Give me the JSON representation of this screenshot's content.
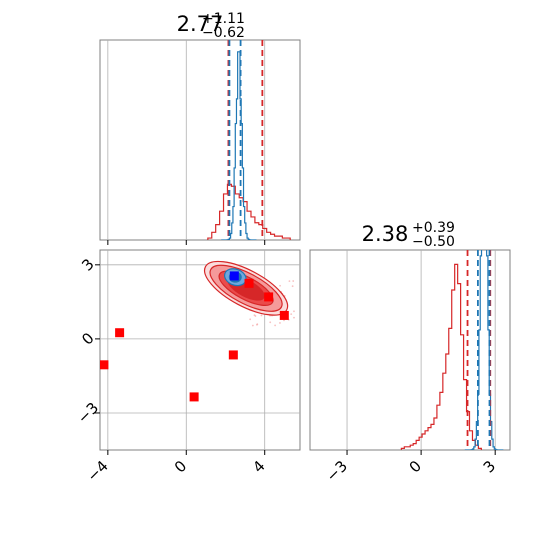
{
  "chart_data": {
    "type": "corner",
    "colors": {
      "posterior_a": "#1f77b4",
      "posterior_b": "#d62728",
      "truth_marker": "#ff0000",
      "mean_marker": "#0000ff",
      "grid": "#b0b0b0"
    },
    "titles": [
      {
        "main": "2.77",
        "sup": "+1.11",
        "sub": "−0.62"
      },
      {
        "main": "2.38",
        "sup": "+0.39",
        "sub": "−0.50"
      }
    ],
    "param1_axis": {
      "range": [
        -4.4,
        5.8
      ],
      "ticks": [
        -4,
        0,
        4
      ],
      "tick_labels": [
        "−4",
        "0",
        "4"
      ]
    },
    "param2_axis": {
      "range": [
        -4.5,
        3.6
      ],
      "ticks": [
        -3,
        0,
        3
      ],
      "tick_labels": [
        "−3",
        "0",
        "3"
      ]
    },
    "hist1": {
      "dashed_blue": [
        2.2,
        2.77
      ],
      "dashed_red": [
        2.15,
        3.88
      ],
      "blue_peak": 2.68,
      "blue_width": 0.15,
      "red_bins": {
        "start": 1.1,
        "width": 0.2,
        "heights": [
          0.01,
          0.04,
          0.08,
          0.15,
          0.24,
          0.29,
          0.28,
          0.24,
          0.22,
          0.2,
          0.15,
          0.12,
          0.09,
          0.08,
          0.06,
          0.04,
          0.03,
          0.02,
          0.02,
          0.01,
          0.01
        ]
      }
    },
    "hist2": {
      "dashed_blue": [
        2.3,
        2.77
      ],
      "dashed_red": [
        1.88,
        2.8
      ],
      "blue_peak": 2.55,
      "blue_width": 0.13,
      "red_bins": {
        "start": -0.8,
        "width": 0.12,
        "heights": [
          0.005,
          0.01,
          0.01,
          0.015,
          0.02,
          0.03,
          0.04,
          0.05,
          0.06,
          0.07,
          0.08,
          0.1,
          0.14,
          0.18,
          0.24,
          0.3,
          0.38,
          0.5,
          0.58,
          0.52,
          0.36,
          0.22,
          0.12,
          0.06,
          0.03,
          0.015,
          0.005
        ]
      }
    },
    "scatter": {
      "truth_points": [
        {
          "x": -4.2,
          "y": -1.05
        },
        {
          "x": -3.4,
          "y": 0.25
        },
        {
          "x": 0.4,
          "y": -2.35
        },
        {
          "x": 2.4,
          "y": -0.65
        },
        {
          "x": 3.2,
          "y": 2.25
        },
        {
          "x": 4.2,
          "y": 1.7
        },
        {
          "x": 5.0,
          "y": 0.95
        }
      ],
      "mean_point": {
        "x": 2.45,
        "y": 2.55
      }
    }
  }
}
